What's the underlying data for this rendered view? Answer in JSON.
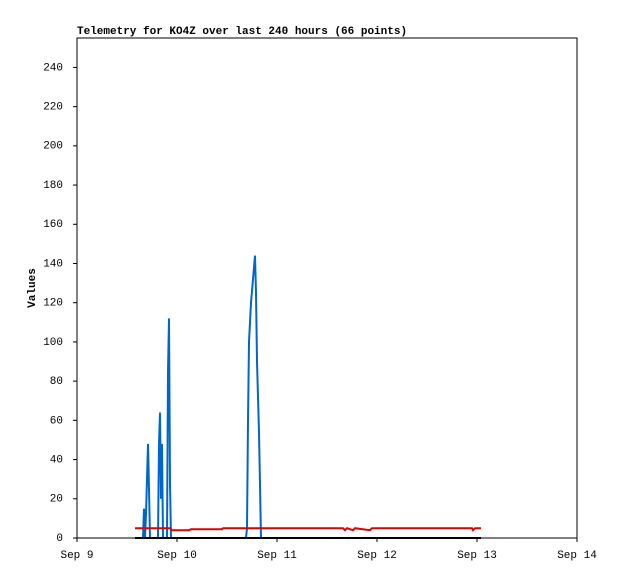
{
  "chart_data": {
    "type": "line",
    "title": "Telemetry for KO4Z over last 240 hours (66 points)",
    "y_label": "Values",
    "xlim": [
      9,
      14
    ],
    "xticks": [
      {
        "value": 9,
        "label": "Sep 9"
      },
      {
        "value": 10,
        "label": "Sep 10"
      },
      {
        "value": 11,
        "label": "Sep 11"
      },
      {
        "value": 12,
        "label": "Sep 12"
      },
      {
        "value": 13,
        "label": "Sep 13"
      },
      {
        "value": 14,
        "label": "Sep 14"
      }
    ],
    "ylim": [
      0,
      255
    ],
    "yticks": [
      0,
      20,
      40,
      60,
      80,
      100,
      120,
      140,
      160,
      180,
      200,
      220,
      240
    ],
    "grid": false,
    "series": [
      {
        "color": "#0066cc",
        "x": [
          9.66,
          9.67,
          9.68,
          9.69,
          9.71,
          9.72,
          9.73,
          9.81,
          9.82,
          9.83,
          9.84,
          9.85,
          9.86,
          9.9,
          9.91,
          9.92,
          9.93,
          9.94,
          10.69,
          10.7,
          10.71,
          10.72,
          10.74,
          10.76,
          10.78,
          10.79,
          10.8,
          10.82,
          10.84
        ],
        "values": [
          0,
          15,
          0,
          12,
          48,
          25,
          0,
          0,
          48,
          64,
          20,
          48,
          0,
          0,
          85,
          112,
          28,
          0,
          0,
          5,
          60,
          100,
          120,
          132,
          144,
          125,
          90,
          54,
          0
        ]
      },
      {
        "color": "#e00000",
        "x": [
          9.58,
          9.93,
          9.95,
          10.12,
          10.14,
          10.45,
          10.46,
          11.66,
          11.68,
          11.7,
          11.76,
          11.78,
          11.93,
          11.95,
          12.95,
          12.96,
          12.98,
          13.04
        ],
        "values": [
          5,
          5,
          4,
          4,
          4.5,
          4.5,
          5,
          5,
          4,
          5,
          4,
          5,
          4,
          5,
          5,
          4,
          5,
          5
        ]
      },
      {
        "color": "#000000",
        "x": [
          9.58,
          13.04
        ],
        "values": [
          0,
          0
        ]
      }
    ]
  }
}
